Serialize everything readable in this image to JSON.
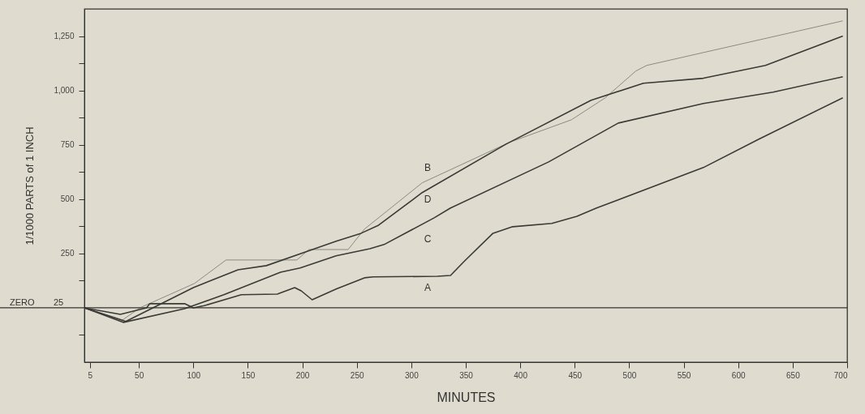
{
  "chart_data": {
    "type": "line",
    "xlabel": "MINUTES",
    "ylabel": "1/1000 PARTS of 1 INCH",
    "xlim": [
      0,
      700
    ],
    "ylim": [
      -250,
      1375
    ],
    "xticks": [
      {
        "value": 5,
        "label": "5"
      },
      50,
      100,
      150,
      200,
      250,
      300,
      350,
      400,
      450,
      500,
      550,
      600,
      650,
      700
    ],
    "yticks": [
      {
        "value": -125,
        "label": null
      },
      {
        "value": 125,
        "label": null
      },
      250,
      {
        "value": 375,
        "label": null
      },
      500,
      {
        "value": 625,
        "label": null
      },
      {
        "value": 750,
        "label": "750"
      },
      {
        "value": 875,
        "label": null
      },
      {
        "value": 1000,
        "label": "1,000"
      },
      {
        "value": 1125,
        "label": null
      },
      {
        "value": 1250,
        "label": "1,250"
      }
    ],
    "grid": false,
    "ref_lines": [
      {
        "axis": "y",
        "value": 0,
        "label": "ZERO"
      }
    ],
    "annotations": [
      "25"
    ],
    "series": [
      {
        "name": "B",
        "color": "#8c8a80",
        "x": [
          0,
          35,
          51,
          101,
          130,
          195,
          206,
          242,
          257,
          310,
          390,
          447,
          478,
          506,
          516,
          696
        ],
        "values": [
          0,
          -56,
          0,
          112,
          220,
          220,
          268,
          268,
          362,
          575,
          761,
          865,
          966,
          1089,
          1115,
          1320
        ]
      },
      {
        "name": "D",
        "color": "#3a3a36",
        "x": [
          0,
          38,
          100,
          141,
          167,
          205,
          231,
          254,
          270,
          310,
          387,
          465,
          513,
          568,
          625,
          696
        ],
        "values": [
          0,
          -63,
          93,
          175,
          194,
          261,
          306,
          343,
          380,
          530,
          753,
          955,
          1033,
          1056,
          1115,
          1250
        ]
      },
      {
        "name": "C",
        "color": "#3a3a36",
        "x": [
          0,
          36,
          92,
          128,
          180,
          198,
          231,
          262,
          275,
          321,
          336,
          426,
          490,
          568,
          632,
          696
        ],
        "values": [
          0,
          -67,
          -4,
          60,
          164,
          183,
          239,
          272,
          291,
          414,
          459,
          671,
          850,
          940,
          992,
          1063
        ]
      },
      {
        "name": "A",
        "color": "#3a3a36",
        "x": [
          0,
          33,
          57,
          60,
          92,
          100,
          110,
          144,
          177,
          193,
          199,
          209,
          231,
          257,
          265,
          324,
          336,
          349,
          375,
          393,
          429,
          452,
          470,
          568,
          619,
          696
        ],
        "values": [
          0,
          -30,
          0,
          19,
          19,
          0,
          10,
          60,
          63,
          93,
          78,
          37,
          86,
          138,
          142,
          145,
          149,
          216,
          343,
          373,
          388,
          421,
          459,
          645,
          776,
          966
        ]
      }
    ]
  }
}
